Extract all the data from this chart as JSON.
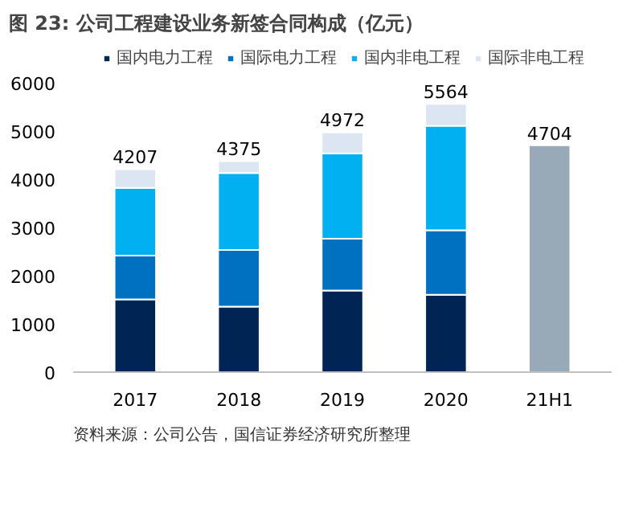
{
  "chart_data": {
    "type": "bar",
    "stacked": true,
    "title": "图 23: 公司工程建设业务新签合同构成（亿元）",
    "annotations": [
      "资料来源：公司公告，国信证券经济研究所整理"
    ],
    "categories": [
      "2017",
      "2018",
      "2019",
      "2020",
      "21H1"
    ],
    "series": [
      {
        "name": "国内电力工程",
        "color": "#002454",
        "values": [
          1510,
          1360,
          1690,
          1605,
          null
        ]
      },
      {
        "name": "国际电力工程",
        "color": "#0070c0",
        "values": [
          905,
          1175,
          1075,
          1335,
          null
        ]
      },
      {
        "name": "国内非电工程",
        "color": "#00b0f0",
        "values": [
          1405,
          1595,
          1770,
          2170,
          null
        ]
      },
      {
        "name": "国际非电工程",
        "color": "#dce6f2",
        "values": [
          387,
          245,
          437,
          454,
          null
        ]
      },
      {
        "color": "#98a9b8",
        "values": [
          null,
          null,
          null,
          null,
          4704
        ]
      }
    ],
    "totals": [
      "4207",
      "4375",
      "4972",
      "5564",
      "4704"
    ],
    "ylim": [
      0,
      6000
    ],
    "yticks": [
      0,
      1000,
      2000,
      3000,
      4000,
      5000,
      6000
    ],
    "grid": false,
    "legend": "top"
  }
}
